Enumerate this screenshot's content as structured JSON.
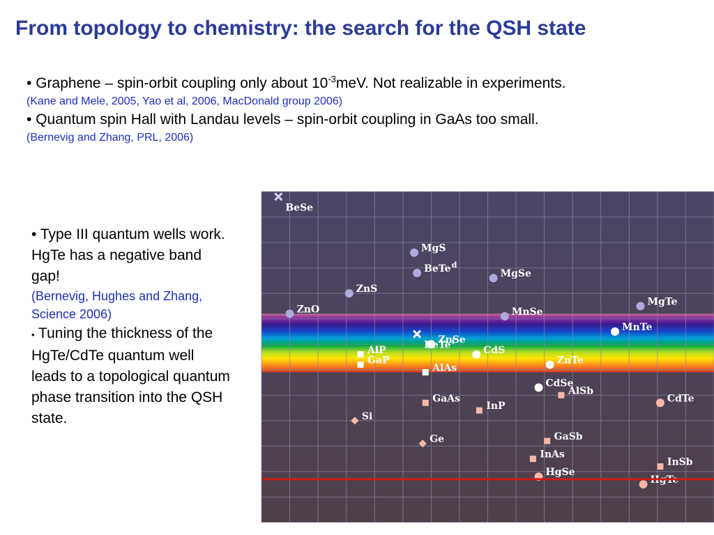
{
  "title": "From topology to chemistry: the search for the QSH state",
  "top_bullets": [
    {
      "bullet": "•",
      "pre": "Graphene – spin-orbit coupling only about 10",
      "sup": "-3",
      "post": "meV. Not realizable in experiments.",
      "cite": "(Kane and Mele, 2005, Yao et al, 2006, MacDonald group 2006)"
    },
    {
      "bullet": "•",
      "pre": "Quantum spin Hall with Landau levels – spin-orbit coupling in GaAs too small.",
      "sup": "",
      "post": "",
      "cite": "(Bernevig and Zhang, PRL, 2006)"
    }
  ],
  "left_bullets": {
    "b1_bullet": "•",
    "b1_text": "Type III quantum wells work. HgTe has a negative band gap!",
    "b1_cite": "(Bernevig, Hughes and Zhang, Science 2006)",
    "b2_bullet": "•",
    "b2_text": "Tuning the thickness of the HgTe/CdTe quantum well leads to a topological quantum phase transition into the QSH state."
  },
  "colors": {
    "title": "#2b3a9a",
    "citation": "#1e2fbf",
    "chart_bg_top": "#4b4666",
    "chart_bg_bottom": "#4e3f48",
    "grid": "#8c86a0",
    "marker_lavender": "#aeaade",
    "marker_salmon": "#f5b8a8",
    "marker_white": "#ffffff",
    "marker_x": "#d9d4ee",
    "zero_line": "#cc1a1a"
  },
  "chart_data": {
    "type": "scatter",
    "title": "",
    "xlabel": "",
    "ylabel": "",
    "grid": true,
    "xlim": [
      0,
      16
    ],
    "ylim": [
      -1,
      12
    ],
    "spectrum_band": [
      4.9,
      7.2
    ],
    "zero_line_y": 0.7,
    "points": [
      {
        "label": "BeSe",
        "x": 0.6,
        "y": 11.8,
        "marker": "x",
        "color": "marker_x"
      },
      {
        "label": "MgS",
        "x": 5.4,
        "y": 9.6,
        "marker": "circle",
        "color": "marker_lavender"
      },
      {
        "label": "BeTe",
        "sup": "d",
        "x": 5.5,
        "y": 8.8,
        "marker": "circle",
        "color": "marker_lavender"
      },
      {
        "label": "MgSe",
        "x": 8.2,
        "y": 8.6,
        "marker": "circle",
        "color": "marker_lavender"
      },
      {
        "label": "ZnS",
        "x": 3.1,
        "y": 8.0,
        "marker": "circle",
        "color": "marker_lavender"
      },
      {
        "label": "ZnO",
        "x": 1.0,
        "y": 7.2,
        "marker": "circle",
        "color": "marker_lavender"
      },
      {
        "label": "MnSe",
        "x": 8.6,
        "y": 7.1,
        "marker": "circle",
        "color": "marker_lavender"
      },
      {
        "label": "MgTe",
        "x": 13.4,
        "y": 7.5,
        "marker": "circle",
        "color": "marker_lavender"
      },
      {
        "label": "MnTe",
        "x": 12.5,
        "y": 6.5,
        "marker": "circle",
        "color": "marker_white"
      },
      {
        "label": "BeTe",
        "sup": "i",
        "x": 5.5,
        "y": 6.4,
        "marker": "x",
        "color": "marker_white"
      },
      {
        "label": "ZnSe",
        "x": 6.0,
        "y": 6.0,
        "marker": "circle",
        "color": "marker_white"
      },
      {
        "label": "CdS",
        "x": 7.6,
        "y": 5.6,
        "marker": "circle",
        "color": "marker_white"
      },
      {
        "label": "AlP",
        "x": 3.5,
        "y": 5.6,
        "marker": "square",
        "color": "marker_white"
      },
      {
        "label": "GaP",
        "x": 3.5,
        "y": 5.2,
        "marker": "square",
        "color": "marker_white"
      },
      {
        "label": "AlAs",
        "x": 5.8,
        "y": 4.9,
        "marker": "square",
        "color": "marker_white"
      },
      {
        "label": "ZnTe",
        "x": 10.2,
        "y": 5.2,
        "marker": "circle",
        "color": "marker_white"
      },
      {
        "label": "CdSe",
        "x": 9.8,
        "y": 4.3,
        "marker": "circle",
        "color": "marker_white"
      },
      {
        "label": "AlSb",
        "x": 10.6,
        "y": 4.0,
        "marker": "square",
        "color": "marker_salmon"
      },
      {
        "label": "CdTe",
        "x": 14.1,
        "y": 3.7,
        "marker": "circle",
        "color": "marker_salmon"
      },
      {
        "label": "GaAs",
        "x": 5.8,
        "y": 3.7,
        "marker": "square",
        "color": "marker_salmon"
      },
      {
        "label": "InP",
        "x": 7.7,
        "y": 3.4,
        "marker": "square",
        "color": "marker_salmon"
      },
      {
        "label": "Si",
        "x": 3.3,
        "y": 3.0,
        "marker": "diamond",
        "color": "marker_salmon"
      },
      {
        "label": "Ge",
        "x": 5.7,
        "y": 2.1,
        "marker": "diamond",
        "color": "marker_salmon"
      },
      {
        "label": "GaSb",
        "x": 10.1,
        "y": 2.2,
        "marker": "square",
        "color": "marker_salmon"
      },
      {
        "label": "InAs",
        "x": 9.6,
        "y": 1.5,
        "marker": "square",
        "color": "marker_salmon"
      },
      {
        "label": "InSb",
        "x": 14.1,
        "y": 1.2,
        "marker": "square",
        "color": "marker_salmon"
      },
      {
        "label": "HgSe",
        "x": 9.8,
        "y": 0.8,
        "marker": "circle",
        "color": "marker_salmon"
      },
      {
        "label": "HgTe",
        "x": 13.5,
        "y": 0.5,
        "marker": "circle",
        "color": "marker_salmon"
      }
    ]
  }
}
